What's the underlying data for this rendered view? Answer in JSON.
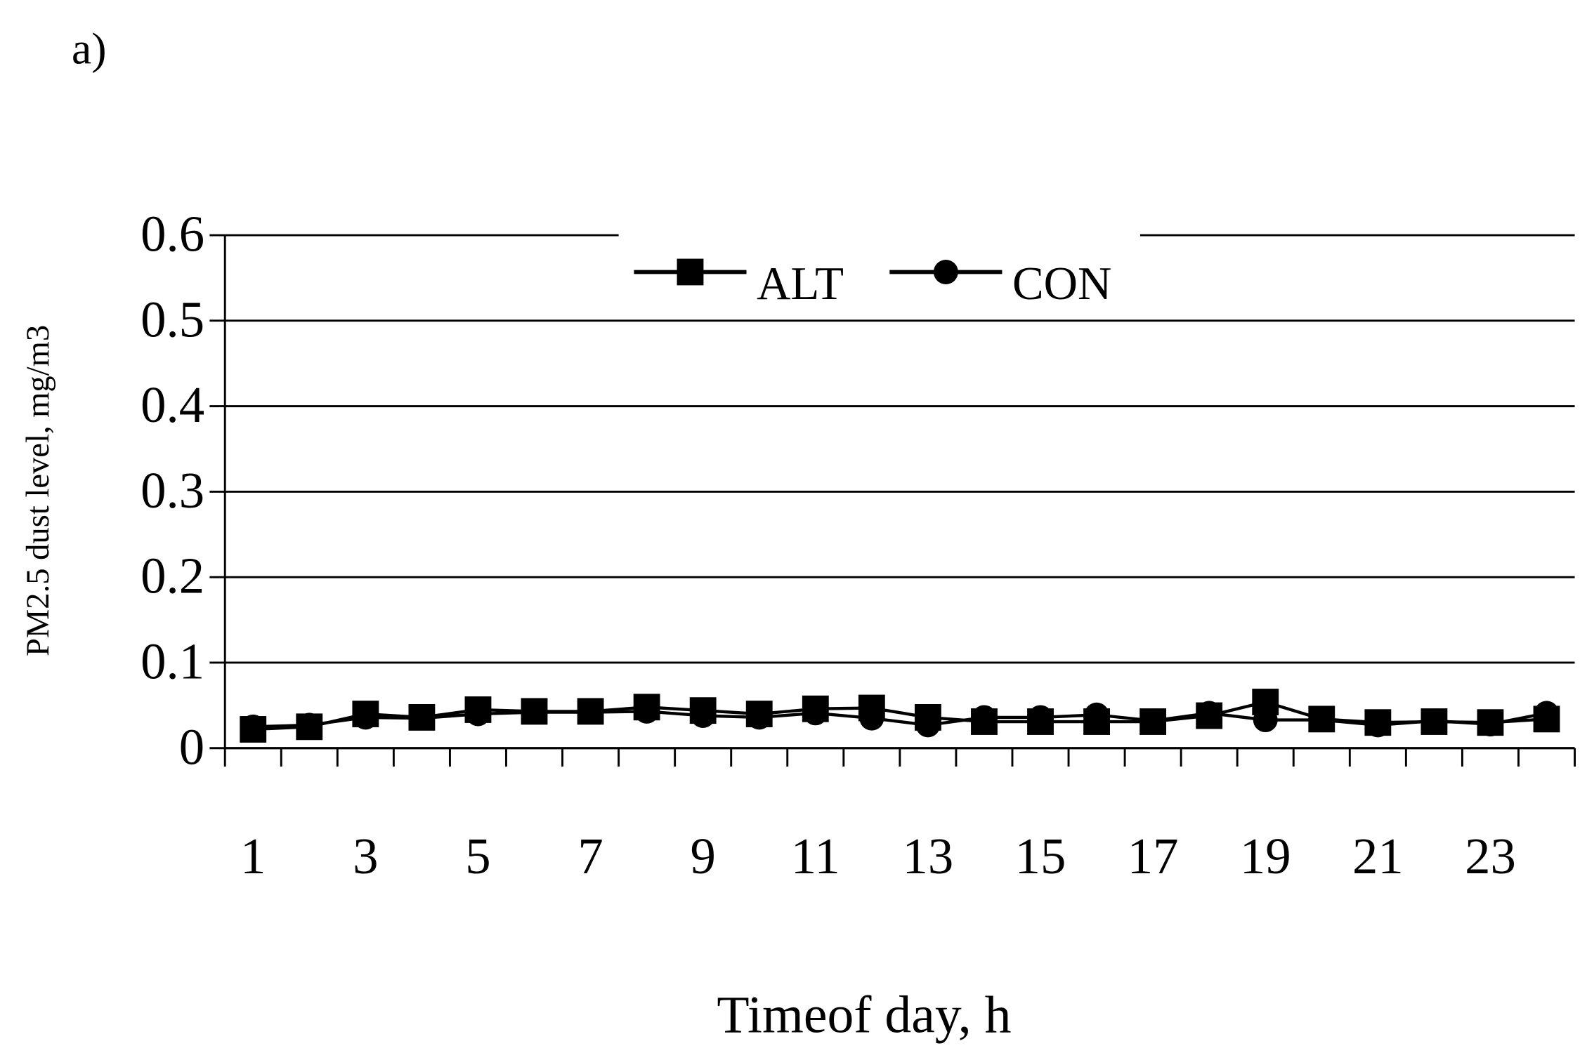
{
  "chart_data": {
    "type": "line",
    "title": "a)",
    "xlabel": "Timeof day, h",
    "ylabel": "PM2.5 dust level, mg/m3",
    "categories": [
      "1",
      null,
      "3",
      null,
      "5",
      null,
      "7",
      null,
      "9",
      null,
      "11",
      null,
      "13",
      null,
      "15",
      null,
      "17",
      null,
      "19",
      null,
      "21",
      null,
      "23",
      null
    ],
    "series": [
      {
        "name": "ALT",
        "color": "#000000",
        "marker": "square",
        "values": [
          0.022,
          0.025,
          0.04,
          0.036,
          0.045,
          0.043,
          0.043,
          0.048,
          0.044,
          0.04,
          0.046,
          0.047,
          0.036,
          0.031,
          0.031,
          0.031,
          0.031,
          0.038,
          0.054,
          0.034,
          0.03,
          0.031,
          0.03,
          0.034
        ]
      },
      {
        "name": "CON",
        "color": "#000000",
        "marker": "circle",
        "values": [
          0.025,
          0.027,
          0.036,
          0.035,
          0.04,
          0.042,
          0.042,
          0.043,
          0.038,
          0.036,
          0.041,
          0.035,
          0.027,
          0.036,
          0.036,
          0.039,
          0.032,
          0.041,
          0.033,
          0.033,
          0.027,
          0.032,
          0.028,
          0.041
        ]
      }
    ],
    "ylim": [
      0,
      0.6
    ],
    "yticks": [
      0,
      0.1,
      0.2,
      0.3,
      0.4,
      0.5,
      0.6
    ],
    "grid": true,
    "legend": "top"
  }
}
